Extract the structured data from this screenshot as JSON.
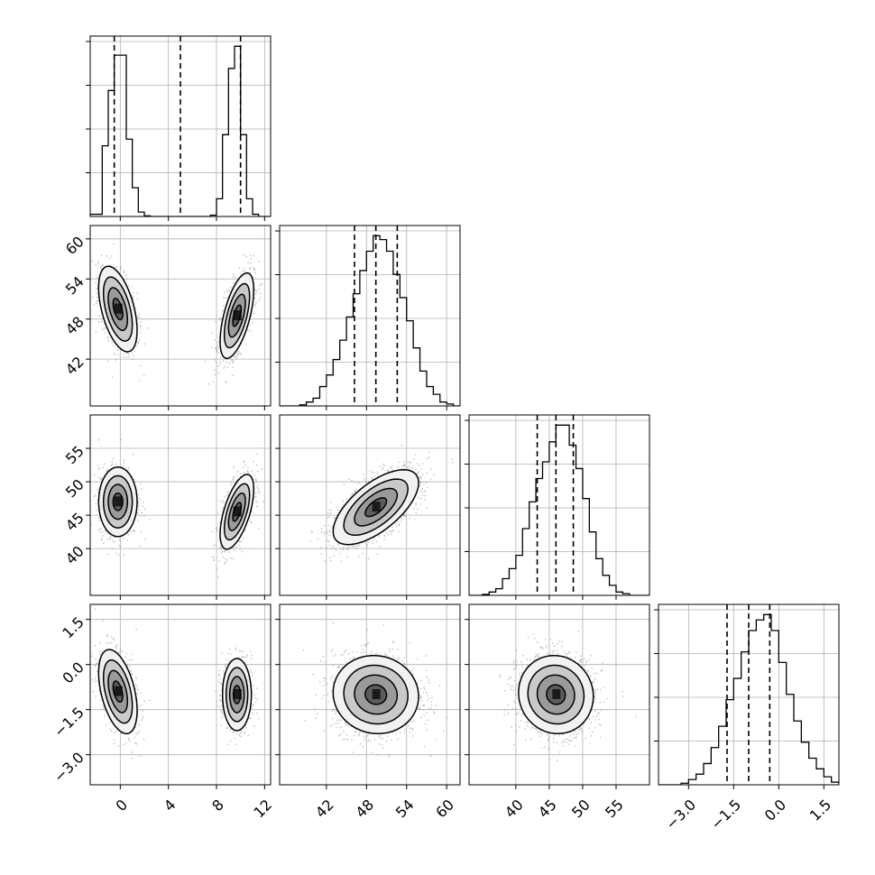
{
  "chart_data": {
    "type": "corner",
    "variables": [
      {
        "id": "p0",
        "range": [
          -2.5,
          12.5
        ],
        "ticks": [
          {
            "v": 0,
            "label": "0"
          },
          {
            "v": 4,
            "label": "4"
          },
          {
            "v": 8,
            "label": "8"
          },
          {
            "v": 12,
            "label": "12"
          }
        ],
        "quantiles": [
          -0.5,
          5.0,
          10.0
        ],
        "histogram": {
          "edges": [
            -2.5,
            -1.5,
            -1.0,
            -0.5,
            0.0,
            0.5,
            1.0,
            1.5,
            2.0,
            2.5,
            3.0,
            7.5,
            8.0,
            8.5,
            9.0,
            9.5,
            10.0,
            10.5,
            11.0,
            11.5,
            12.5
          ],
          "counts": [
            1,
            32,
            57,
            73,
            73,
            35,
            13,
            2,
            0.3,
            0,
            0,
            0.6,
            8,
            37,
            67,
            77,
            37,
            8,
            1,
            0
          ]
        },
        "modes": [
          {
            "cx": -0.2,
            "sx": 0.8
          },
          {
            "cx": 9.7,
            "sx": 0.7
          }
        ]
      },
      {
        "id": "p1",
        "range": [
          35,
          62
        ],
        "ticks": [
          {
            "v": 42,
            "label": "42"
          },
          {
            "v": 48,
            "label": "48"
          },
          {
            "v": 54,
            "label": "54"
          },
          {
            "v": 60,
            "label": "60"
          }
        ],
        "quantiles": [
          46.2,
          49.4,
          52.6
        ],
        "histogram": {
          "edges": [
            35,
            36,
            37,
            38,
            39,
            40,
            41,
            42,
            43,
            44,
            45,
            46,
            47,
            48,
            49,
            50,
            51,
            52,
            53,
            54,
            55,
            56,
            57,
            58,
            59,
            60,
            61,
            62
          ],
          "counts": [
            0,
            0,
            0,
            0.3,
            1,
            2,
            5,
            8,
            12,
            17,
            23,
            29,
            35,
            40,
            44,
            43,
            40,
            34,
            28,
            22,
            15,
            9,
            5,
            3,
            1,
            0.5,
            0
          ]
        },
        "center": 49.4,
        "sd": 3.2
      },
      {
        "id": "p2",
        "range": [
          33,
          60
        ],
        "ticks": [
          {
            "v": 40,
            "label": "40"
          },
          {
            "v": 45,
            "label": "45"
          },
          {
            "v": 50,
            "label": "50"
          },
          {
            "v": 55,
            "label": "55"
          }
        ],
        "quantiles": [
          43.2,
          46.0,
          48.6
        ],
        "histogram": {
          "edges": [
            33,
            34,
            35,
            36,
            37,
            38,
            39,
            40,
            41,
            42,
            43,
            44,
            45,
            46,
            47,
            48,
            49,
            50,
            51,
            52,
            53,
            54,
            55,
            56,
            57,
            58,
            59,
            60
          ],
          "counts": [
            0,
            0,
            0.3,
            1,
            2,
            5,
            8,
            12,
            20,
            28,
            35,
            40,
            46,
            51,
            51,
            45,
            38,
            29,
            19,
            11,
            6,
            3,
            1,
            0.5,
            0,
            0,
            0
          ]
        },
        "center": 46.0,
        "sd": 2.8
      },
      {
        "id": "p3",
        "range": [
          -4.0,
          2.0
        ],
        "ticks": [
          {
            "v": -3.0,
            "label": "−3.0"
          },
          {
            "v": -1.5,
            "label": "−1.5"
          },
          {
            "v": 0.0,
            "label": "0.0"
          },
          {
            "v": 1.5,
            "label": "1.5"
          }
        ],
        "y_ticks": [
          {
            "v": -3.0,
            "label": "−3.0"
          },
          {
            "v": -1.5,
            "label": "−1.5"
          },
          {
            "v": 0.0,
            "label": "0.0"
          },
          {
            "v": 1.5,
            "label": "1.5"
          }
        ],
        "quantiles": [
          -1.72,
          -1.0,
          -0.3
        ],
        "histogram": {
          "edges": [
            -4.0,
            -3.75,
            -3.5,
            -3.25,
            -3.0,
            -2.75,
            -2.5,
            -2.25,
            -2.0,
            -1.75,
            -1.5,
            -1.25,
            -1.0,
            -0.75,
            -0.5,
            -0.25,
            0.0,
            0.25,
            0.5,
            0.75,
            1.0,
            1.25,
            1.5,
            1.75,
            2.0
          ],
          "counts": [
            0,
            0,
            0,
            0.3,
            1,
            2,
            4,
            7,
            11,
            16,
            20,
            25,
            29,
            31,
            32,
            29,
            23,
            17,
            12,
            8,
            5,
            3,
            1.5,
            0.5
          ]
        },
        "center": -1.0,
        "sd": 0.65
      }
    ],
    "pairs": [
      {
        "row": 1,
        "col": 0,
        "rho": [
          -0.5,
          0.6
        ],
        "centers": [
          {
            "x": -0.2,
            "y": 49.5
          },
          {
            "x": 9.7,
            "y": 48.5
          }
        ],
        "sx": [
          0.8,
          0.7
        ],
        "sy": [
          3.2,
          3.2
        ]
      },
      {
        "row": 2,
        "col": 0,
        "rho": [
          0.0,
          0.6
        ],
        "centers": [
          {
            "x": -0.2,
            "y": 47.0
          },
          {
            "x": 9.7,
            "y": 45.5
          }
        ],
        "sx": [
          0.8,
          0.7
        ],
        "sy": [
          2.6,
          2.8
        ]
      },
      {
        "row": 2,
        "col": 1,
        "rho": [
          0.65
        ],
        "centers": [
          {
            "x": 49.4,
            "y": 46.2
          }
        ],
        "sx": [
          3.2
        ],
        "sy": [
          2.8
        ]
      },
      {
        "row": 3,
        "col": 0,
        "rho": [
          -0.45,
          0.0
        ],
        "centers": [
          {
            "x": -0.2,
            "y": -0.9
          },
          {
            "x": 9.7,
            "y": -1.0
          }
        ],
        "sx": [
          0.8,
          0.6
        ],
        "sy": [
          0.7,
          0.6
        ]
      },
      {
        "row": 3,
        "col": 1,
        "rho": [
          -0.05
        ],
        "centers": [
          {
            "x": 49.4,
            "y": -1.0
          }
        ],
        "sx": [
          3.2
        ],
        "sy": [
          0.65
        ]
      },
      {
        "row": 3,
        "col": 2,
        "rho": [
          -0.05
        ],
        "centers": [
          {
            "x": 46.0,
            "y": -1.0
          }
        ],
        "sx": [
          2.8
        ],
        "sy": [
          0.65
        ]
      }
    ],
    "contour_levels_sigma": [
      0.5,
      1.0,
      1.5,
      2.0
    ],
    "grid": true,
    "colors": {
      "line": "#000000",
      "grid": "#b0b0b0",
      "density": "#000000",
      "points": "#888888"
    }
  }
}
